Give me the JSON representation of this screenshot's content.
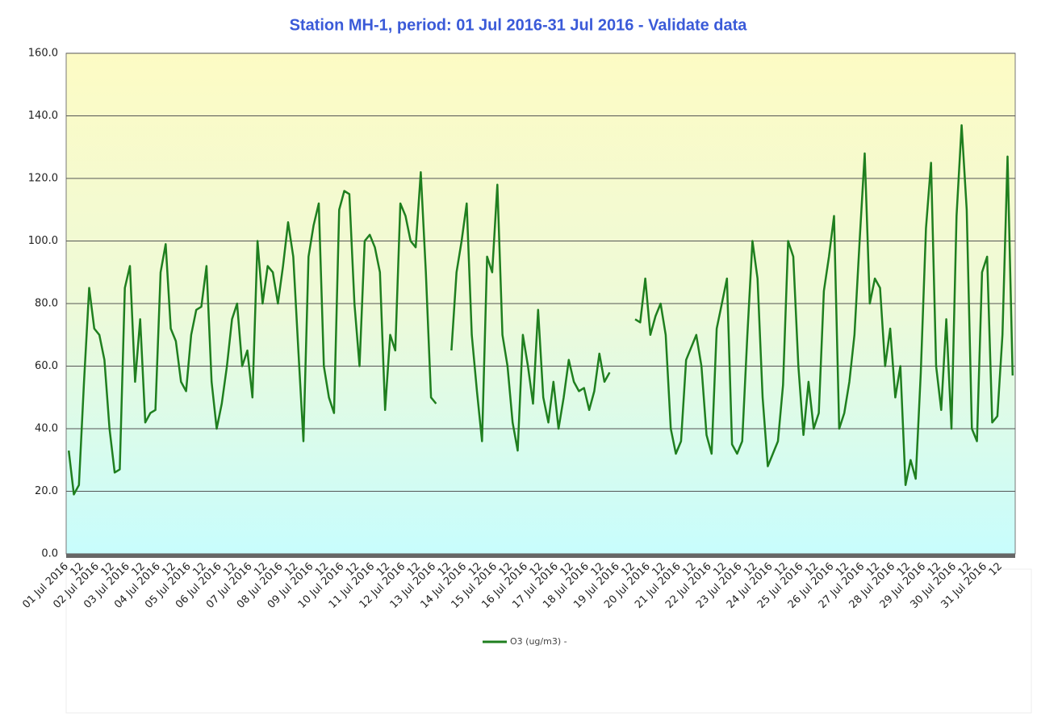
{
  "chart_data": {
    "type": "line",
    "title": "Station MH-1, period: 01 Jul 2016-31 Jul 2016 - Validate data",
    "categories": [
      "01 Jul 2016",
      null,
      null,
      "12",
      null,
      null,
      "02 Jul 2016",
      null,
      null,
      "12",
      null,
      null,
      "03 Jul 2016",
      null,
      null,
      "12",
      null,
      null,
      "04 Jul 2016",
      null,
      null,
      "12",
      null,
      null,
      "05 Jul 2016",
      null,
      null,
      "12",
      null,
      null,
      "06 Jul 2016",
      null,
      null,
      "12",
      null,
      null,
      "07 Jul 2016",
      null,
      null,
      "12",
      null,
      null,
      "08 Jul 2016",
      null,
      null,
      "12",
      null,
      null,
      "09 Jul 2016",
      null,
      null,
      "12",
      null,
      null,
      "10 Jul 2016",
      null,
      null,
      "12",
      null,
      null,
      "11 Jul 2016",
      null,
      null,
      "12",
      null,
      null,
      "12 Jul 2016",
      null,
      null,
      "12",
      null,
      null,
      "13 Jul 2016",
      null,
      null,
      "12",
      null,
      null,
      "14 Jul 2016",
      null,
      null,
      "12",
      null,
      null,
      "15 Jul 2016",
      null,
      null,
      "12",
      null,
      null,
      "16 Jul 2016",
      null,
      null,
      "12",
      null,
      null,
      "17 Jul 2016",
      null,
      null,
      "12",
      null,
      null,
      "18 Jul 2016",
      null,
      null,
      "12",
      null,
      null,
      "19 Jul 2016",
      null,
      null,
      "12",
      null,
      null,
      "20 Jul 2016",
      null,
      null,
      "12",
      null,
      null,
      "21 Jul 2016",
      null,
      null,
      "12",
      null,
      null,
      "22 Jul 2016",
      null,
      null,
      "12",
      null,
      null,
      "23 Jul 2016",
      null,
      null,
      "12",
      null,
      null,
      "24 Jul 2016",
      null,
      null,
      "12",
      null,
      null,
      "25 Jul 2016",
      null,
      null,
      "12",
      null,
      null,
      "26 Jul 2016",
      null,
      null,
      "12",
      null,
      null,
      "27 Jul 2016",
      null,
      null,
      "12",
      null,
      null,
      "28 Jul 2016",
      null,
      null,
      "12",
      null,
      null,
      "29 Jul 2016",
      null,
      null,
      "12",
      null,
      null,
      "30 Jul 2016",
      null,
      null,
      "12",
      null,
      null,
      "31 Jul 2016",
      null,
      null,
      "12",
      null,
      null
    ],
    "series": [
      {
        "name": "O3 (ug/m3) -",
        "color": "#1f7f1f",
        "values": [
          33,
          19,
          22,
          55,
          85,
          72,
          70,
          62,
          40,
          26,
          27,
          85,
          92,
          55,
          75,
          42,
          45,
          46,
          90,
          99,
          72,
          68,
          55,
          52,
          70,
          78,
          79,
          92,
          55,
          40,
          48,
          60,
          75,
          80,
          60,
          65,
          50,
          100,
          80,
          92,
          90,
          80,
          92,
          106,
          95,
          65,
          36,
          95,
          105,
          112,
          60,
          50,
          45,
          110,
          116,
          115,
          80,
          60,
          100,
          102,
          98,
          90,
          46,
          70,
          65,
          112,
          108,
          100,
          98,
          122,
          90,
          50,
          48,
          null,
          null,
          65,
          90,
          100,
          112,
          70,
          52,
          36,
          95,
          90,
          118,
          70,
          60,
          42,
          33,
          70,
          60,
          48,
          78,
          50,
          42,
          55,
          40,
          50,
          62,
          55,
          52,
          53,
          46,
          52,
          64,
          55,
          58,
          null,
          null,
          null,
          null,
          75,
          74,
          88,
          70,
          76,
          80,
          70,
          40,
          32,
          36,
          62,
          66,
          70,
          60,
          38,
          32,
          72,
          80,
          88,
          35,
          32,
          36,
          70,
          100,
          88,
          50,
          28,
          32,
          36,
          54,
          100,
          95,
          60,
          38,
          55,
          40,
          45,
          84,
          95,
          108,
          40,
          45,
          55,
          70,
          100,
          128,
          80,
          88,
          85,
          60,
          72,
          50,
          60,
          22,
          30,
          24,
          58,
          104,
          125,
          60,
          46,
          75,
          40,
          108,
          137,
          110,
          40,
          36,
          90,
          95,
          42,
          44,
          70,
          127,
          57
        ]
      }
    ],
    "ylim": [
      0,
      160
    ],
    "yticks": [
      {
        "value": 0,
        "label": "0.0"
      },
      {
        "value": 20,
        "label": "20.0"
      },
      {
        "value": 40,
        "label": "40.0"
      },
      {
        "value": 60,
        "label": "60.0"
      },
      {
        "value": 80,
        "label": "80.0"
      },
      {
        "value": 100,
        "label": "100.0"
      },
      {
        "value": 120,
        "label": "120.0"
      },
      {
        "value": 140,
        "label": "140.0"
      },
      {
        "value": 160,
        "label": "160.0"
      }
    ],
    "grid": true,
    "legend": "bottom"
  }
}
